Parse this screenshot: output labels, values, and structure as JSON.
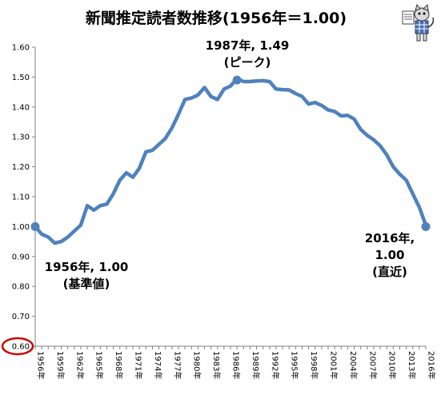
{
  "chart_data": {
    "type": "line",
    "title": "新聞推定読者数推移(1956年＝1.00)",
    "xlabel": "",
    "ylabel": "",
    "ylim": [
      0.6,
      1.6
    ],
    "y_ticks": [
      "0.60",
      "0.70",
      "0.80",
      "0.90",
      "1.00",
      "1.10",
      "1.20",
      "1.30",
      "1.40",
      "1.50",
      "1.60"
    ],
    "x_tick_labels": [
      "1956年",
      "1959年",
      "1962年",
      "1965年",
      "1968年",
      "1971年",
      "1974年",
      "1977年",
      "1980年",
      "1983年",
      "1986年",
      "1989年",
      "1992年",
      "1995年",
      "1998年",
      "2001年",
      "2004年",
      "2007年",
      "2010年",
      "2013年",
      "2016年"
    ],
    "grid": false,
    "line_color": "#4f81bd",
    "highlight_circle_color": "#cc0000",
    "highlighted_tick": "0.60",
    "series": [
      {
        "x": [
          1956,
          1957,
          1958,
          1959,
          1960,
          1961,
          1962,
          1963,
          1964,
          1965,
          1966,
          1967,
          1968,
          1969,
          1970,
          1971,
          1972,
          1973,
          1974,
          1975,
          1976,
          1977,
          1978,
          1979,
          1980,
          1981,
          1982,
          1983,
          1984,
          1985,
          1986,
          1987,
          1988,
          1989,
          1990,
          1991,
          1992,
          1993,
          1994,
          1995,
          1996,
          1997,
          1998,
          1999,
          2000,
          2001,
          2002,
          2003,
          2004,
          2005,
          2006,
          2007,
          2008,
          2009,
          2010,
          2011,
          2012,
          2013,
          2014,
          2015,
          2016
        ],
        "values": [
          1.0,
          0.975,
          0.965,
          0.945,
          0.95,
          0.965,
          0.985,
          1.005,
          1.07,
          1.055,
          1.07,
          1.075,
          1.11,
          1.155,
          1.18,
          1.165,
          1.195,
          1.25,
          1.255,
          1.275,
          1.295,
          1.33,
          1.375,
          1.425,
          1.43,
          1.44,
          1.465,
          1.435,
          1.425,
          1.46,
          1.47,
          1.495,
          1.485,
          1.485,
          1.487,
          1.488,
          1.485,
          1.46,
          1.458,
          1.457,
          1.445,
          1.435,
          1.41,
          1.415,
          1.405,
          1.39,
          1.385,
          1.37,
          1.372,
          1.36,
          1.325,
          1.305,
          1.29,
          1.27,
          1.24,
          1.2,
          1.175,
          1.155,
          1.11,
          1.065,
          1.005
        ]
      }
    ],
    "annotations": [
      {
        "x": 1956,
        "value": 1.0,
        "lines": [
          "1956年, 1.00",
          "(基準値)"
        ]
      },
      {
        "x": 1987,
        "value": 1.49,
        "lines": [
          "1987年, 1.49",
          "(ピーク)"
        ]
      },
      {
        "x": 2016,
        "value": 1.0,
        "lines": [
          "2016年,",
          "1.00",
          "(直近)"
        ]
      }
    ]
  }
}
